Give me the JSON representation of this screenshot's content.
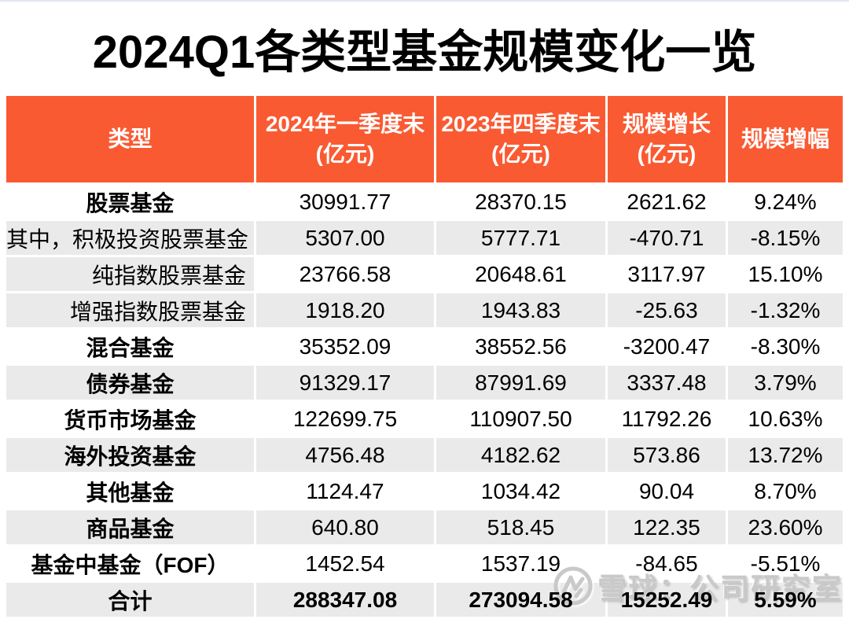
{
  "title": "2024Q1各类型基金规模变化一览",
  "chart_data": {
    "type": "table",
    "title": "2024Q1各类型基金规模变化一览",
    "columns": [
      {
        "label": "类型",
        "sublabel": ""
      },
      {
        "label": "2024年一季度末",
        "sublabel": "(亿元)"
      },
      {
        "label": "2023年四季度末",
        "sublabel": "(亿元)"
      },
      {
        "label": "规模增长",
        "sublabel": "(亿元)"
      },
      {
        "label": "规模增幅",
        "sublabel": ""
      }
    ],
    "rows": [
      {
        "type": "股票基金",
        "q1_2024": "30991.77",
        "q4_2023": "28370.15",
        "growth": "2621.62",
        "growth_pct": "9.24%",
        "emphasis": true,
        "values_emphasis": false,
        "indent": false,
        "shaded": false,
        "label_shaded": false
      },
      {
        "type": "其中，积极投资股票基金",
        "q1_2024": "5307.00",
        "q4_2023": "5777.71",
        "growth": "-470.71",
        "growth_pct": "-8.15%",
        "emphasis": false,
        "values_emphasis": false,
        "indent": true,
        "shaded": true,
        "label_shaded": true
      },
      {
        "type": "纯指数股票基金",
        "q1_2024": "23766.58",
        "q4_2023": "20648.61",
        "growth": "3117.97",
        "growth_pct": "15.10%",
        "emphasis": false,
        "values_emphasis": false,
        "indent": true,
        "shaded": false,
        "label_shaded": true
      },
      {
        "type": "增强指数股票基金",
        "q1_2024": "1918.20",
        "q4_2023": "1943.83",
        "growth": "-25.63",
        "growth_pct": "-1.32%",
        "emphasis": false,
        "values_emphasis": false,
        "indent": true,
        "shaded": true,
        "label_shaded": true
      },
      {
        "type": "混合基金",
        "q1_2024": "35352.09",
        "q4_2023": "38552.56",
        "growth": "-3200.47",
        "growth_pct": "-8.30%",
        "emphasis": true,
        "values_emphasis": false,
        "indent": false,
        "shaded": false,
        "label_shaded": false
      },
      {
        "type": "债券基金",
        "q1_2024": "91329.17",
        "q4_2023": "87991.69",
        "growth": "3337.48",
        "growth_pct": "3.79%",
        "emphasis": true,
        "values_emphasis": false,
        "indent": false,
        "shaded": true,
        "label_shaded": true
      },
      {
        "type": "货币市场基金",
        "q1_2024": "122699.75",
        "q4_2023": "110907.50",
        "growth": "11792.26",
        "growth_pct": "10.63%",
        "emphasis": true,
        "values_emphasis": false,
        "indent": false,
        "shaded": false,
        "label_shaded": false
      },
      {
        "type": "海外投资基金",
        "q1_2024": "4756.48",
        "q4_2023": "4182.62",
        "growth": "573.86",
        "growth_pct": "13.72%",
        "emphasis": true,
        "values_emphasis": false,
        "indent": false,
        "shaded": true,
        "label_shaded": true
      },
      {
        "type": "其他基金",
        "q1_2024": "1124.47",
        "q4_2023": "1034.42",
        "growth": "90.04",
        "growth_pct": "8.70%",
        "emphasis": true,
        "values_emphasis": false,
        "indent": false,
        "shaded": false,
        "label_shaded": false
      },
      {
        "type": "商品基金",
        "q1_2024": "640.80",
        "q4_2023": "518.45",
        "growth": "122.35",
        "growth_pct": "23.60%",
        "emphasis": true,
        "values_emphasis": false,
        "indent": false,
        "shaded": true,
        "label_shaded": true
      },
      {
        "type": "基金中基金（FOF）",
        "q1_2024": "1452.54",
        "q4_2023": "1537.19",
        "growth": "-84.65",
        "growth_pct": "-5.51%",
        "emphasis": true,
        "values_emphasis": false,
        "indent": false,
        "shaded": false,
        "label_shaded": false
      },
      {
        "type": "合计",
        "q1_2024": "288347.08",
        "q4_2023": "273094.58",
        "growth": "15252.49",
        "growth_pct": "5.59%",
        "emphasis": true,
        "values_emphasis": true,
        "indent": false,
        "shaded": true,
        "label_shaded": true
      }
    ]
  },
  "watermark": {
    "logo": "xueqiu-logo",
    "text": "雪球：公司研究室"
  },
  "colors": {
    "header_bg": "#FA5A32",
    "stripe_bg": "#EAEAEA",
    "header_text": "#FFFFFF",
    "title_color": "#000000",
    "watermark_color": "#C9C9C9"
  }
}
